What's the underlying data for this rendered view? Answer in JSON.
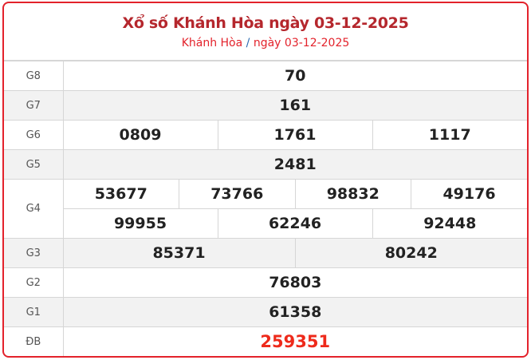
{
  "header": {
    "title": "Xổ số Khánh Hòa ngày 03-12-2025",
    "breadcrumb": {
      "province": "Khánh Hòa",
      "separator": "/",
      "date": "ngày 03-12-2025"
    }
  },
  "prizes": {
    "g8": {
      "label": "G8",
      "numbers": [
        "70"
      ]
    },
    "g7": {
      "label": "G7",
      "numbers": [
        "161"
      ]
    },
    "g6": {
      "label": "G6",
      "numbers": [
        "0809",
        "1761",
        "1117"
      ]
    },
    "g5": {
      "label": "G5",
      "numbers": [
        "2481"
      ]
    },
    "g4": {
      "label": "G4",
      "numbers": [
        "53677",
        "73766",
        "98832",
        "49176",
        "99955",
        "62246",
        "92448"
      ]
    },
    "g3": {
      "label": "G3",
      "numbers": [
        "85371",
        "80242"
      ]
    },
    "g2": {
      "label": "G2",
      "numbers": [
        "76803"
      ]
    },
    "g1": {
      "label": "G1",
      "numbers": [
        "61358"
      ]
    },
    "db": {
      "label": "ĐB",
      "numbers": [
        "259351"
      ]
    }
  },
  "colors": {
    "accent": "#e3222b",
    "title": "#b5272d",
    "special": "#ee2a1b"
  }
}
